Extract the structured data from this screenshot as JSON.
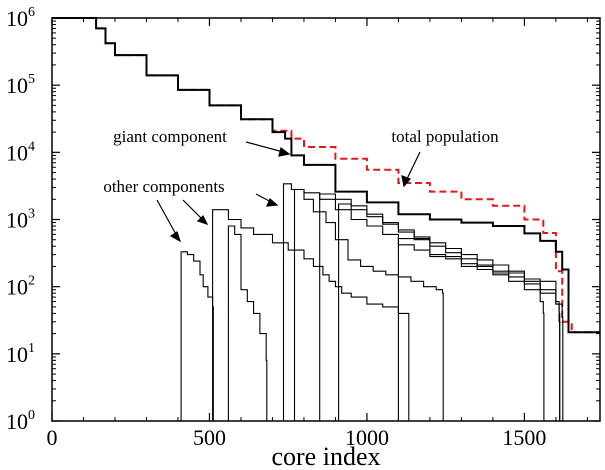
{
  "chart_data": {
    "type": "line",
    "title": "",
    "xlabel": "core index",
    "ylabel": "",
    "xlim": [
      0,
      1740
    ],
    "ylim": [
      1,
      1000000
    ],
    "y_scale": "log",
    "grid": false,
    "x_ticks": [
      0,
      500,
      1000,
      1500
    ],
    "x_tick_labels": [
      "0",
      "500",
      "1000",
      "1500"
    ],
    "y_ticks": [
      {
        "value": 1,
        "base": "10",
        "exp": "0"
      },
      {
        "value": 10,
        "base": "10",
        "exp": "1"
      },
      {
        "value": 100,
        "base": "10",
        "exp": "2"
      },
      {
        "value": 1000,
        "base": "10",
        "exp": "3"
      },
      {
        "value": 10000,
        "base": "10",
        "exp": "4"
      },
      {
        "value": 100000,
        "base": "10",
        "exp": "5"
      },
      {
        "value": 1000000,
        "base": "10",
        "exp": "6"
      }
    ],
    "series": [
      {
        "key": "total",
        "color": "#e8161b",
        "dashed": true,
        "x": [
          0,
          110,
          140,
          170,
          200,
          300,
          400,
          500,
          600,
          700,
          760,
          800,
          900,
          1000,
          1100,
          1200,
          1300,
          1400,
          1500,
          1560,
          1600,
          1620,
          1650,
          1680,
          1740
        ],
        "y": [
          1000000,
          1000000,
          700000,
          420000,
          280000,
          140000,
          85000,
          50000,
          31000,
          21000,
          16000,
          12000,
          8000,
          5500,
          3500,
          2600,
          2000,
          1600,
          1000,
          630,
          170,
          30,
          21,
          21,
          21
        ]
      },
      {
        "key": "giant",
        "color": "#000000",
        "dashed": false,
        "x": [
          0,
          110,
          140,
          170,
          200,
          300,
          400,
          500,
          600,
          700,
          740,
          760,
          800,
          900,
          1000,
          1100,
          1200,
          1300,
          1400,
          1500,
          1550,
          1600,
          1620,
          1640,
          1700,
          1740
        ],
        "y": [
          1000000,
          1000000,
          700000,
          420000,
          280000,
          140000,
          85000,
          50000,
          31000,
          20000,
          16000,
          9000,
          6500,
          2600,
          1800,
          1200,
          1000,
          900,
          800,
          620,
          480,
          330,
          180,
          21,
          21,
          21
        ]
      },
      {
        "key": "other-1",
        "color": "#000000",
        "dashed": false,
        "x": [
          405,
          410,
          430,
          450,
          470,
          480,
          495,
          510,
          512
        ],
        "y": [
          1,
          330,
          300,
          240,
          150,
          100,
          70,
          50,
          1
        ]
      },
      {
        "key": "other-2",
        "color": "#000000",
        "dashed": false,
        "x": [
          505,
          510,
          560,
          600,
          640,
          700,
          750,
          800,
          830,
          860,
          880,
          900,
          920,
          950,
          1000,
          1050,
          1100,
          1130,
          1133
        ],
        "y": [
          1,
          1400,
          1000,
          750,
          600,
          450,
          350,
          260,
          200,
          150,
          120,
          100,
          80,
          70,
          55,
          50,
          40,
          40,
          1
        ]
      },
      {
        "key": "other-3",
        "color": "#000000",
        "dashed": false,
        "x": [
          555,
          560,
          580,
          600,
          620,
          640,
          660,
          680,
          682
        ],
        "y": [
          1,
          800,
          600,
          90,
          60,
          40,
          20,
          8,
          1
        ]
      },
      {
        "key": "other-4",
        "color": "#000000",
        "dashed": false,
        "x": [
          725,
          735,
          760,
          800,
          830,
          870,
          900,
          940,
          980,
          1020,
          1060,
          1100,
          1140,
          1180,
          1220,
          1240,
          1242
        ],
        "y": [
          1,
          3400,
          2800,
          2000,
          1300,
          900,
          500,
          250,
          200,
          170,
          150,
          140,
          120,
          100,
          90,
          80,
          1
        ]
      },
      {
        "key": "other-5",
        "color": "#000000",
        "dashed": false,
        "x": [
          760,
          770,
          800,
          850,
          900,
          950,
          1000,
          1050,
          1100,
          1150,
          1200,
          1250,
          1300,
          1350,
          1400,
          1450,
          1500,
          1550,
          1560,
          1562
        ],
        "y": [
          1,
          2800,
          2500,
          2000,
          1400,
          1000,
          800,
          600,
          420,
          350,
          300,
          260,
          220,
          180,
          150,
          120,
          90,
          60,
          40,
          1
        ]
      },
      {
        "key": "other-6",
        "color": "#000000",
        "dashed": false,
        "x": [
          840,
          850,
          900,
          950,
          1000,
          1050,
          1100,
          1150,
          1200,
          1250,
          1300,
          1350,
          1400,
          1450,
          1500,
          1550,
          1600,
          1610,
          1612
        ],
        "y": [
          1,
          2400,
          2000,
          1600,
          1200,
          900,
          700,
          550,
          450,
          370,
          300,
          250,
          210,
          170,
          130,
          90,
          55,
          40,
          1
        ]
      },
      {
        "key": "other-7",
        "color": "#000000",
        "dashed": false,
        "x": [
          900,
          910,
          950,
          1000,
          1050,
          1100,
          1150,
          1200,
          1250,
          1300,
          1350,
          1400,
          1450,
          1500,
          1550,
          1600,
          1620,
          1622
        ],
        "y": [
          1,
          1700,
          1400,
          1100,
          850,
          650,
          500,
          400,
          320,
          260,
          210,
          170,
          140,
          110,
          80,
          55,
          35,
          1
        ]
      },
      {
        "key": "other-8",
        "color": "#000000",
        "dashed": false,
        "x": [
          1080,
          1100,
          1200,
          1300,
          1400,
          1500,
          1600,
          1610,
          1612
        ],
        "y": [
          1,
          520,
          280,
          200,
          160,
          120,
          60,
          30,
          1
        ]
      }
    ],
    "annotations": [
      {
        "text": "giant component",
        "x": 370,
        "y": 10000
      },
      {
        "text": "total population",
        "x": 1170,
        "y": 10000
      },
      {
        "text": "other components",
        "x": 110,
        "y": 2500
      }
    ]
  }
}
